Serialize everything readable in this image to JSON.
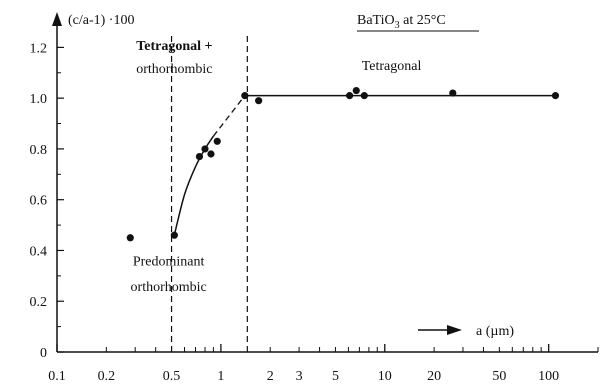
{
  "chart_data": {
    "type": "scatter",
    "title": "BaTiO3 at 25°C",
    "title_main": "BaTiO",
    "title_sub": "3",
    "title_rest": " at 25°C",
    "xlabel": "a (µm)",
    "ylabel": "(c/a-1) ·100",
    "x_scale": "log",
    "xlim": [
      0.1,
      200
    ],
    "ylim": [
      0,
      1.3
    ],
    "x_ticks": [
      0.1,
      0.2,
      0.5,
      1,
      2,
      3,
      5,
      10,
      20,
      50,
      100
    ],
    "x_tick_labels": [
      "0.1",
      "0.2",
      "0.5",
      "1",
      "2",
      "3",
      "5",
      "10",
      "20",
      "50",
      "100"
    ],
    "y_ticks": [
      0,
      0.2,
      0.4,
      0.6,
      0.8,
      1.0,
      1.2
    ],
    "y_tick_labels": [
      "0",
      "0.2",
      "0.4",
      "0.6",
      "0.8",
      "1.0",
      "1.2"
    ],
    "grid": false,
    "points": [
      {
        "x": 0.28,
        "y": 0.45
      },
      {
        "x": 0.52,
        "y": 0.46
      },
      {
        "x": 0.74,
        "y": 0.77
      },
      {
        "x": 0.8,
        "y": 0.8
      },
      {
        "x": 0.87,
        "y": 0.78
      },
      {
        "x": 0.95,
        "y": 0.83
      },
      {
        "x": 1.4,
        "y": 1.01
      },
      {
        "x": 1.7,
        "y": 0.99
      },
      {
        "x": 6.1,
        "y": 1.01
      },
      {
        "x": 6.7,
        "y": 1.03
      },
      {
        "x": 7.5,
        "y": 1.01
      },
      {
        "x": 26,
        "y": 1.02
      },
      {
        "x": 110,
        "y": 1.01
      }
    ],
    "fit_solid_1": [
      [
        0.52,
        0.46
      ],
      [
        0.6,
        0.62
      ],
      [
        0.7,
        0.73
      ],
      [
        0.8,
        0.8
      ],
      [
        0.9,
        0.85
      ]
    ],
    "fit_dashed": [
      [
        0.9,
        0.85
      ],
      [
        1.4,
        1.01
      ]
    ],
    "fit_solid_2": [
      [
        1.4,
        1.01
      ],
      [
        1.7,
        1.01
      ],
      [
        10,
        1.01
      ],
      [
        110,
        1.01
      ]
    ],
    "vlines": [
      0.5,
      1.45
    ],
    "annotations": [
      {
        "text": "Tetragonal +",
        "x": 0.52,
        "y": 1.19,
        "style": "bold"
      },
      {
        "text": "orthorhombic",
        "x": 0.52,
        "y": 1.1,
        "style": "normal"
      },
      {
        "text": "Tetragonal",
        "x": 11,
        "y": 1.11,
        "style": "normal"
      },
      {
        "text": "Predominant",
        "x": 0.48,
        "y": 0.34,
        "style": "normal"
      },
      {
        "text": "orthorhombic",
        "x": 0.48,
        "y": 0.24,
        "style": "normal"
      }
    ]
  }
}
